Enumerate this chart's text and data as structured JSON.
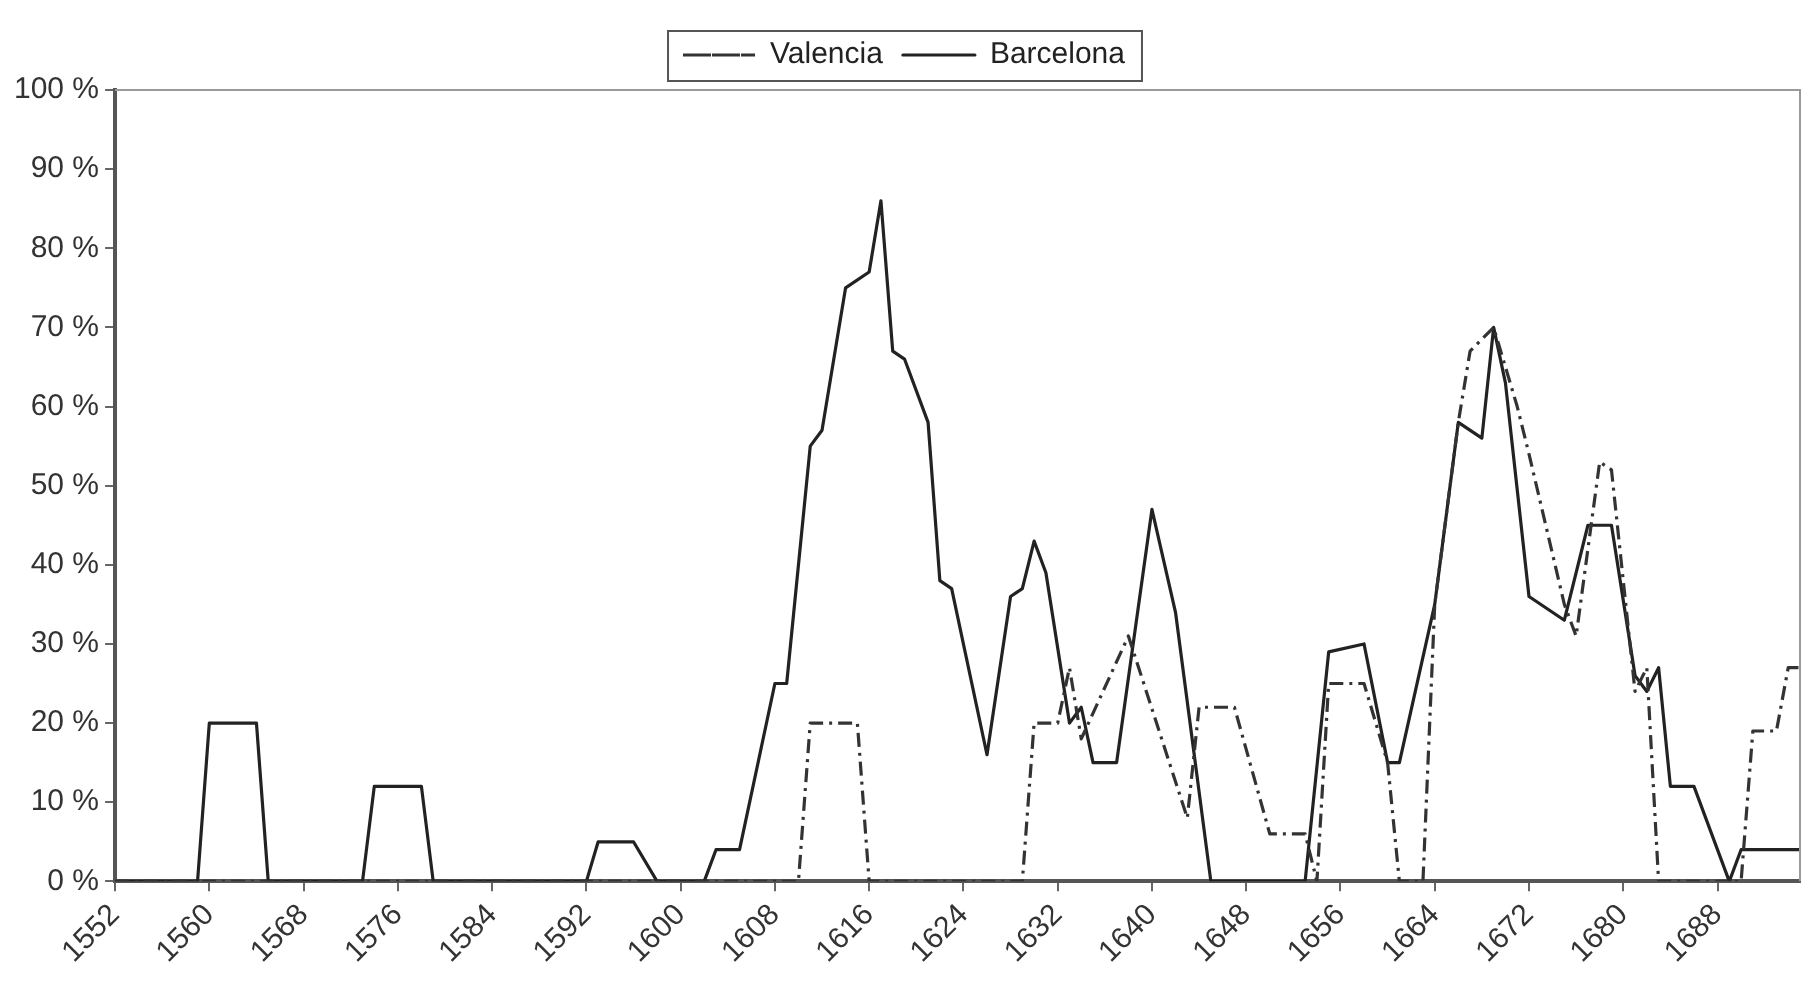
{
  "chart_data": {
    "type": "line",
    "legend": "top",
    "grid": false,
    "marker": "none",
    "xlim": [
      1552,
      1695
    ],
    "xticks": [
      1552,
      1560,
      1568,
      1576,
      1584,
      1592,
      1600,
      1608,
      1616,
      1624,
      1632,
      1640,
      1648,
      1656,
      1664,
      1672,
      1680,
      1688
    ],
    "ylim": [
      0,
      100
    ],
    "yticks": [
      {
        "value": 0,
        "label": "0 %"
      },
      {
        "value": 10,
        "label": "10 %"
      },
      {
        "value": 20,
        "label": "20 %"
      },
      {
        "value": 30,
        "label": "30 %"
      },
      {
        "value": 40,
        "label": "40 %"
      },
      {
        "value": 50,
        "label": "50 %"
      },
      {
        "value": 60,
        "label": "60 %"
      },
      {
        "value": 70,
        "label": "70 %"
      },
      {
        "value": 80,
        "label": "80 %"
      },
      {
        "value": 90,
        "label": "90 %"
      },
      {
        "value": 100,
        "label": "100 %"
      }
    ],
    "series": [
      {
        "name": "Valencia",
        "color": "#333333",
        "line_style": "dashed",
        "x": [
          1552,
          1610,
          1611,
          1615,
          1616,
          1629,
          1630,
          1632,
          1633,
          1634,
          1638,
          1643,
          1644,
          1647,
          1650,
          1653,
          1654,
          1655,
          1658,
          1660,
          1661,
          1663,
          1664,
          1666,
          1667,
          1669,
          1671,
          1672,
          1675,
          1676,
          1678,
          1679,
          1681,
          1682,
          1683,
          1690,
          1691,
          1693,
          1694,
          1695
        ],
        "values": [
          0,
          0,
          20,
          20,
          0,
          0,
          20,
          20,
          27,
          18,
          31,
          8,
          22,
          22,
          6,
          6,
          0,
          25,
          25,
          15,
          0,
          0,
          35,
          58,
          67,
          70,
          60,
          54,
          35,
          31,
          53,
          52,
          24,
          27,
          0,
          0,
          19,
          19,
          27,
          27
        ]
      },
      {
        "name": "Barcelona",
        "color": "#222222",
        "line_style": "solid",
        "x": [
          1552,
          1559,
          1560,
          1564,
          1565,
          1573,
          1574,
          1578,
          1579,
          1592,
          1593,
          1596,
          1598,
          1602,
          1603,
          1605,
          1608,
          1609,
          1611,
          1612,
          1614,
          1616,
          1617,
          1618,
          1619,
          1621,
          1622,
          1623,
          1626,
          1628,
          1629,
          1630,
          1631,
          1633,
          1634,
          1635,
          1637,
          1640,
          1642,
          1645,
          1653,
          1655,
          1658,
          1660,
          1661,
          1664,
          1666,
          1668,
          1669,
          1670,
          1672,
          1675,
          1677,
          1679,
          1681,
          1682,
          1683,
          1684,
          1686,
          1689,
          1690,
          1695
        ],
        "values": [
          0,
          0,
          20,
          20,
          0,
          0,
          12,
          12,
          0,
          0,
          5,
          5,
          0,
          0,
          4,
          4,
          25,
          25,
          55,
          57,
          75,
          77,
          86,
          67,
          66,
          58,
          38,
          37,
          16,
          36,
          37,
          43,
          39,
          20,
          22,
          15,
          15,
          47,
          34,
          0,
          0,
          29,
          30,
          15,
          15,
          35,
          58,
          56,
          70,
          63,
          36,
          33,
          45,
          45,
          26,
          24,
          27,
          12,
          12,
          0,
          4,
          4
        ]
      }
    ]
  }
}
